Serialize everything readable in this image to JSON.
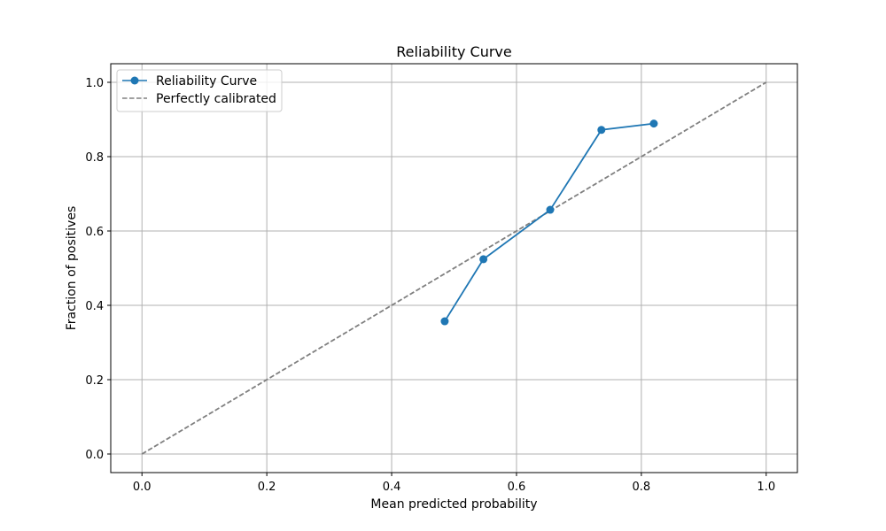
{
  "chart_data": {
    "type": "line",
    "title": "Reliability Curve",
    "xlabel": "Mean predicted probability",
    "ylabel": "Fraction of positives",
    "xlim": [
      -0.05,
      1.05
    ],
    "ylim": [
      -0.05,
      1.05
    ],
    "xticks": [
      "0.0",
      "0.2",
      "0.4",
      "0.6",
      "0.8",
      "1.0"
    ],
    "yticks": [
      "0.0",
      "0.2",
      "0.4",
      "0.6",
      "0.8",
      "1.0"
    ],
    "grid": true,
    "legend_position": "top-left",
    "series": [
      {
        "name": "Reliability Curve",
        "color": "#1f77b4",
        "style": "solid",
        "marker": "circle",
        "x": [
          0.485,
          0.547,
          0.654,
          0.736,
          0.82
        ],
        "y": [
          0.357,
          0.524,
          0.657,
          0.872,
          0.889
        ]
      },
      {
        "name": "Perfectly calibrated",
        "color": "#808080",
        "style": "dashed",
        "marker": "none",
        "x": [
          0.0,
          1.0
        ],
        "y": [
          0.0,
          1.0
        ]
      }
    ]
  }
}
